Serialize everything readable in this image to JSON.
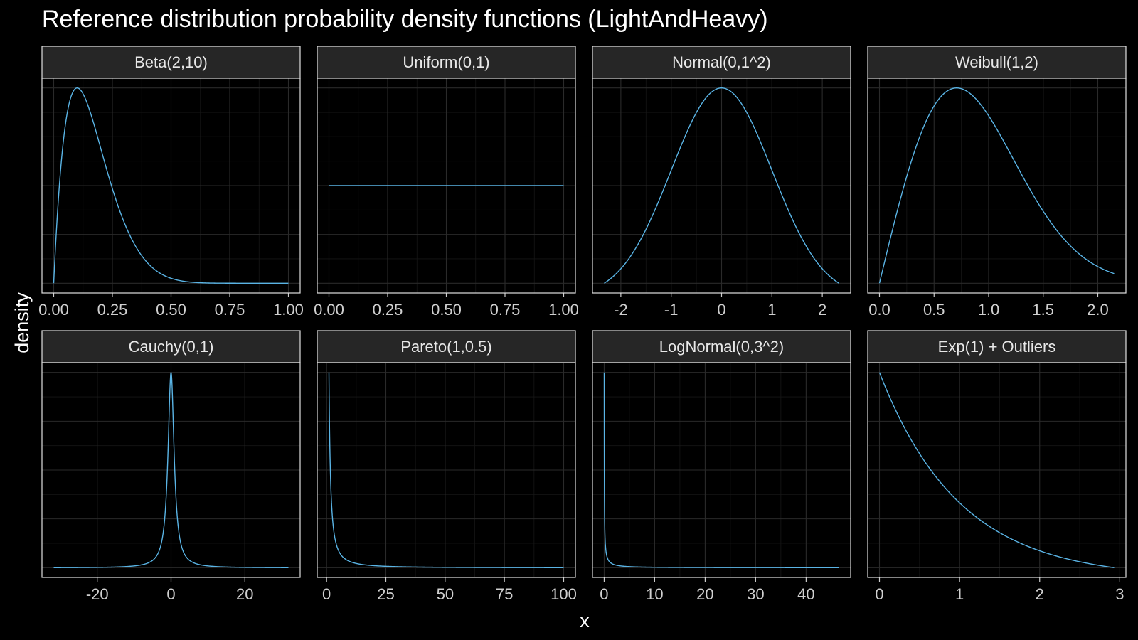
{
  "chart_data": {
    "type": "line",
    "title": "Reference distribution probability density functions (LightAndHeavy)",
    "xlabel": "x",
    "ylabel": "density",
    "y_tick_labels_shown": false,
    "line_color": "#5ab4e5",
    "background_color": "#000000",
    "strip_color": "#262626",
    "grid": true,
    "layout": {
      "rows": 2,
      "cols": 4,
      "shared_y": false,
      "free_x": true
    },
    "panels": [
      {
        "name": "Beta(2,10)",
        "distribution": "beta",
        "params": {
          "a": 2,
          "b": 10
        },
        "xlim": [
          0,
          1
        ],
        "xticks": [
          0,
          0.25,
          0.5,
          0.75,
          1
        ],
        "xtick_labels": [
          "0.00",
          "0.25",
          "0.50",
          "0.75",
          "1.00"
        ]
      },
      {
        "name": "Uniform(0,1)",
        "distribution": "uniform",
        "params": {
          "min": 0,
          "max": 1
        },
        "xlim": [
          0,
          1
        ],
        "xticks": [
          0,
          0.25,
          0.5,
          0.75,
          1
        ],
        "xtick_labels": [
          "0.00",
          "0.25",
          "0.50",
          "0.75",
          "1.00"
        ]
      },
      {
        "name": "Normal(0,1^2)",
        "distribution": "normal",
        "params": {
          "mean": 0,
          "sd": 1
        },
        "xlim": [
          -2.33,
          2.33
        ],
        "xticks": [
          -2,
          -1,
          0,
          1,
          2
        ],
        "xtick_labels": [
          "-2",
          "-1",
          "0",
          "1",
          "2"
        ]
      },
      {
        "name": "Weibull(1,2)",
        "distribution": "weibull",
        "params": {
          "scale": 1,
          "shape": 2
        },
        "xlim": [
          0,
          2.15
        ],
        "xticks": [
          0,
          0.5,
          1,
          1.5,
          2
        ],
        "xtick_labels": [
          "0.0",
          "0.5",
          "1.0",
          "1.5",
          "2.0"
        ]
      },
      {
        "name": "Cauchy(0,1)",
        "distribution": "cauchy",
        "params": {
          "location": 0,
          "scale": 1
        },
        "xlim": [
          -31.8,
          31.8
        ],
        "xticks": [
          -20,
          0,
          20
        ],
        "xtick_labels": [
          "-20",
          "0",
          "20"
        ]
      },
      {
        "name": "Pareto(1,0.5)",
        "distribution": "pareto",
        "params": {
          "xm": 1,
          "alpha": 0.5
        },
        "xlim": [
          1,
          100
        ],
        "xticks": [
          0,
          25,
          50,
          75,
          100
        ],
        "xtick_labels": [
          "0",
          "25",
          "50",
          "75",
          "100"
        ]
      },
      {
        "name": "LogNormal(0,3^2)",
        "distribution": "lognormal",
        "params": {
          "meanlog": 0,
          "sdlog": 3
        },
        "xlim": [
          0.01,
          46.5
        ],
        "xticks": [
          0,
          10,
          20,
          30,
          40
        ],
        "xtick_labels": [
          "0",
          "10",
          "20",
          "30",
          "40"
        ]
      },
      {
        "name": "Exp(1) + Outliers",
        "distribution": "exponential",
        "params": {
          "rate": 1
        },
        "xlim": [
          0,
          2.93
        ],
        "xticks": [
          0,
          1,
          2,
          3
        ],
        "xtick_labels": [
          "0",
          "1",
          "2",
          "3"
        ]
      }
    ]
  }
}
